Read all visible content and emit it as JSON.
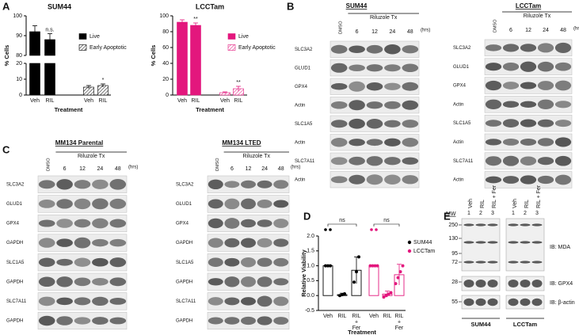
{
  "panel_letters": [
    "A",
    "B",
    "C",
    "D",
    "E"
  ],
  "chart_data": [
    {
      "type": "bar",
      "title": "SUM44",
      "categories": [
        "Veh",
        "RIL",
        "Veh",
        "RIL"
      ],
      "series": [
        {
          "name": "Live",
          "color": "#000000",
          "values": [
            92,
            88,
            null,
            null
          ],
          "errors": [
            3,
            3,
            null,
            null
          ]
        },
        {
          "name": "Early Apoptotic",
          "color": "#000000",
          "hatch": true,
          "values": [
            null,
            null,
            5,
            6
          ],
          "errors": [
            null,
            null,
            1,
            1
          ]
        }
      ],
      "annotations": [
        "n.s.",
        "*"
      ],
      "x_label": "Treatment",
      "y_label": "% Cells",
      "ylim": [
        0,
        100
      ],
      "ybreak": [
        20,
        80
      ],
      "yticks": [
        0,
        10,
        20,
        80,
        90,
        100
      ]
    },
    {
      "type": "bar",
      "title": "LCCTam",
      "categories": [
        "Veh",
        "RIL",
        "Veh",
        "RIL"
      ],
      "series": [
        {
          "name": "Live",
          "color": "#e3177d",
          "values": [
            92,
            88,
            null,
            null
          ],
          "errors": [
            3,
            3,
            null,
            null
          ]
        },
        {
          "name": "Early Apoptotic",
          "color": "#e3177d",
          "hatch": true,
          "values": [
            null,
            null,
            3,
            8
          ],
          "errors": [
            null,
            null,
            1,
            3
          ]
        }
      ],
      "annotations": [
        "**",
        "**"
      ],
      "x_label": "Treatment",
      "y_label": "% Cells",
      "ylim": [
        0,
        100
      ],
      "yticks": [
        0,
        20,
        40,
        60,
        80,
        100
      ]
    },
    {
      "type": "bar",
      "bar_style": "outline",
      "categories": [
        "Veh",
        "RIL",
        "RIL + Fer",
        "Veh",
        "RIL",
        "RIL + Fer"
      ],
      "series": [
        {
          "name": "SUM44",
          "color": "#000000",
          "values": [
            1.0,
            0.03,
            0.85,
            null,
            null,
            null
          ],
          "errors": [
            0,
            0.05,
            0.45,
            null,
            null,
            null
          ],
          "points": [
            [
              1.0,
              1.0,
              1.0
            ],
            [
              0.0,
              0.03,
              0.06
            ],
            [
              0.45,
              0.8,
              1.3
            ],
            null,
            null,
            null
          ]
        },
        {
          "name": "LCCTam",
          "color": "#e3177d",
          "values": [
            null,
            null,
            null,
            1.0,
            0.05,
            0.7
          ],
          "errors": [
            null,
            null,
            null,
            0,
            0.1,
            0.35
          ],
          "points": [
            null,
            null,
            null,
            [
              1.0,
              1.0,
              1.0,
              1.0
            ],
            [
              -0.05,
              0.0,
              0.05,
              0.1
            ],
            [
              0.4,
              0.6,
              0.8,
              1.0
            ]
          ]
        }
      ],
      "annotations": [
        "ns",
        "ns"
      ],
      "x_label": "Treatment",
      "y_label": "Relative Viability",
      "ylim": [
        -0.5,
        2.0
      ],
      "yticks": [
        -0.5,
        {
          "value": 0,
          "label": "0.0"
        },
        0.5,
        {
          "value": 1,
          "label": "1.0"
        },
        1.5,
        {
          "value": 2,
          "label": "2.0"
        }
      ]
    }
  ],
  "blots": [
    {
      "title": "SUM44",
      "treatment": "Riluzole Tx",
      "control": "DMSO",
      "times": [
        6,
        12,
        24,
        48
      ],
      "unit": "(hrs)",
      "rows": [
        "SLC3A2",
        "GLUD1",
        "GPX4",
        "Actin",
        "SLC1A5",
        "Actin",
        "SLC7A11",
        "Actin"
      ]
    },
    {
      "title": "LCCTam",
      "treatment": "Riluzole Tx",
      "control": "DMSO",
      "times": [
        6,
        12,
        24,
        48
      ],
      "unit": "(hrs)",
      "rows": [
        "SLC3A2",
        "GLUD1",
        "GPX4",
        "Actin",
        "SLC1A5",
        "Actin",
        "SLC7A11",
        "Actin"
      ]
    },
    {
      "title": "MM134 Parental",
      "treatment": "Riluzole Tx",
      "control": "DMSO",
      "times": [
        6,
        12,
        24,
        48
      ],
      "unit": "(hrs)",
      "rows": [
        "SLC3A2",
        "GLUD1",
        "GPX4",
        "GAPDH",
        "SLC1A5",
        "GAPDH",
        "SLC7A11",
        "GAPDH"
      ]
    },
    {
      "title": "MM134 LTED",
      "treatment": "Riluzole Tx",
      "control": "DMSO",
      "times": [
        6,
        12,
        24,
        48
      ],
      "unit": "(hrs)",
      "rows": [
        "SLC3A2",
        "GLUD1",
        "GPX4",
        "GAPDH",
        "SLC1A5",
        "GAPDH",
        "SLC7A11",
        "GAPDH"
      ]
    }
  ],
  "panel_e": {
    "mw_label": "MW",
    "mw": [
      250,
      130,
      95,
      72,
      28,
      55
    ],
    "lanes": [
      "Veh",
      "RIL",
      "RIL + Fer"
    ],
    "lane_numbers": [
      1,
      2,
      3
    ],
    "antibodies": [
      "IB: MDA",
      "IB: GPX4",
      "IB: β-actin"
    ],
    "cell_lines": [
      "SUM44",
      "LCCTam"
    ]
  }
}
